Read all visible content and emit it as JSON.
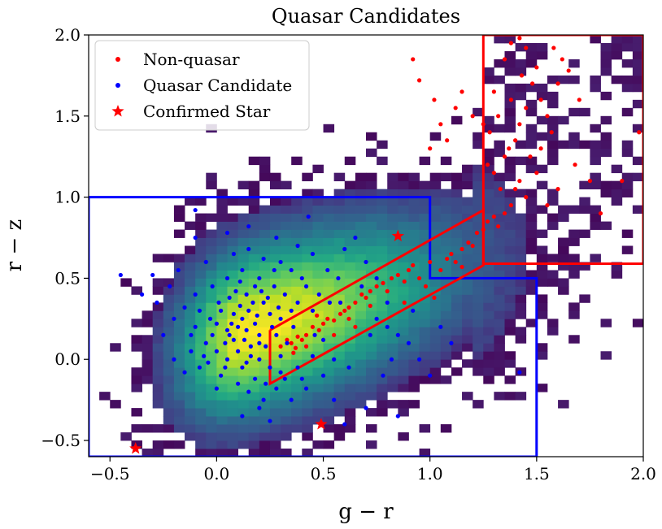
{
  "chart_data": {
    "type": "scatter",
    "title": "Quasar Candidates",
    "xlabel": "g − r",
    "ylabel": "r − z",
    "xlim": [
      -0.6,
      2.0
    ],
    "ylim": [
      -0.6,
      2.0
    ],
    "x_ticks": [
      -0.5,
      0.0,
      0.5,
      1.0,
      1.5,
      2.0
    ],
    "x_tick_labels": [
      "−0.5",
      "0.0",
      "0.5",
      "1.0",
      "1.5",
      "2.0"
    ],
    "y_ticks": [
      -0.5,
      0.0,
      0.5,
      1.0,
      1.5,
      2.0
    ],
    "y_tick_labels": [
      "−0.5",
      "0.0",
      "0.5",
      "1.0",
      "1.5",
      "2.0"
    ],
    "background": {
      "type": "heatmap",
      "description_colormap": "viridis",
      "core_center": [
        0.15,
        0.2
      ]
    },
    "legend": {
      "position": "top-left",
      "entries": [
        {
          "label": "Non-quasar",
          "marker": "dot",
          "color": "#ff0000"
        },
        {
          "label": "Quasar Candidate",
          "marker": "dot",
          "color": "#0000ff"
        },
        {
          "label": "Confirmed Star",
          "marker": "star",
          "color": "#ff0000"
        }
      ]
    },
    "regions": [
      {
        "name": "blue-region",
        "color": "#0000ff",
        "points": [
          [
            -0.6,
            1.0
          ],
          [
            1.0,
            1.0
          ],
          [
            1.0,
            0.5
          ],
          [
            1.5,
            0.5
          ],
          [
            1.5,
            -0.6
          ],
          [
            -0.6,
            -0.6
          ],
          [
            -0.6,
            1.0
          ]
        ]
      },
      {
        "name": "red-stripe-region",
        "color": "#ff0000",
        "points": [
          [
            0.25,
            0.18
          ],
          [
            1.25,
            0.92
          ],
          [
            1.25,
            0.58
          ],
          [
            0.25,
            -0.15
          ],
          [
            0.25,
            0.18
          ]
        ]
      },
      {
        "name": "red-box-region",
        "color": "#ff0000",
        "points": [
          [
            1.25,
            2.0
          ],
          [
            2.0,
            2.0
          ],
          [
            2.0,
            0.59
          ],
          [
            1.25,
            0.59
          ],
          [
            1.25,
            2.0
          ]
        ]
      }
    ],
    "series": [
      {
        "name": "Non-quasar",
        "color": "#ff0000",
        "marker": "dot",
        "points": [
          [
            0.3,
            0.08
          ],
          [
            0.33,
            0.12
          ],
          [
            0.35,
            0.1
          ],
          [
            0.37,
            0.07
          ],
          [
            0.38,
            0.14
          ],
          [
            0.4,
            0.12
          ],
          [
            0.42,
            0.15
          ],
          [
            0.36,
            0.04
          ],
          [
            0.45,
            0.2
          ],
          [
            0.48,
            0.18
          ],
          [
            0.5,
            0.22
          ],
          [
            0.52,
            0.25
          ],
          [
            0.47,
            0.27
          ],
          [
            0.55,
            0.24
          ],
          [
            0.58,
            0.28
          ],
          [
            0.6,
            0.3
          ],
          [
            0.62,
            0.32
          ],
          [
            0.65,
            0.35
          ],
          [
            0.68,
            0.4
          ],
          [
            0.7,
            0.38
          ],
          [
            0.72,
            0.42
          ],
          [
            0.75,
            0.45
          ],
          [
            0.78,
            0.47
          ],
          [
            0.8,
            0.42
          ],
          [
            0.82,
            0.5
          ],
          [
            0.85,
            0.52
          ],
          [
            0.88,
            0.48
          ],
          [
            0.9,
            0.55
          ],
          [
            0.92,
            0.58
          ],
          [
            0.95,
            0.5
          ],
          [
            1.0,
            0.6
          ],
          [
            1.05,
            0.55
          ],
          [
            1.08,
            0.62
          ],
          [
            1.1,
            0.65
          ],
          [
            1.12,
            0.6
          ],
          [
            1.15,
            0.68
          ],
          [
            1.18,
            0.72
          ],
          [
            1.2,
            0.7
          ],
          [
            1.22,
            0.78
          ],
          [
            1.25,
            0.8
          ],
          [
            1.27,
            0.85
          ],
          [
            1.3,
            0.88
          ],
          [
            1.32,
            0.82
          ],
          [
            1.35,
            0.9
          ],
          [
            1.38,
            0.95
          ],
          [
            1.4,
            1.05
          ],
          [
            1.42,
            1.1
          ],
          [
            1.45,
            1.0
          ],
          [
            1.3,
            1.15
          ],
          [
            1.35,
            1.25
          ],
          [
            1.28,
            1.4
          ],
          [
            1.32,
            1.5
          ],
          [
            1.38,
            1.6
          ],
          [
            1.4,
            1.35
          ],
          [
            1.42,
            1.45
          ],
          [
            1.45,
            1.55
          ],
          [
            1.48,
            1.7
          ],
          [
            1.5,
            1.8
          ],
          [
            1.35,
            1.85
          ],
          [
            1.38,
            1.95
          ],
          [
            1.42,
            1.98
          ],
          [
            1.45,
            1.92
          ],
          [
            1.3,
            1.65
          ],
          [
            1.47,
            1.25
          ],
          [
            1.5,
            1.15
          ],
          [
            1.52,
            1.3
          ],
          [
            1.55,
            1.5
          ],
          [
            1.6,
            1.7
          ],
          [
            1.62,
            1.85
          ],
          [
            1.58,
            1.92
          ],
          [
            1.65,
            1.78
          ],
          [
            1.7,
            1.6
          ],
          [
            1.68,
            1.2
          ],
          [
            1.75,
            1.1
          ],
          [
            1.6,
            1.05
          ],
          [
            1.55,
            0.95
          ],
          [
            1.8,
            0.9
          ],
          [
            1.9,
            1.1
          ],
          [
            1.98,
            1.4
          ],
          [
            1.25,
            1.45
          ],
          [
            1.2,
            1.5
          ],
          [
            1.15,
            1.65
          ],
          [
            1.12,
            1.55
          ],
          [
            1.08,
            1.35
          ],
          [
            1.05,
            1.45
          ],
          [
            1.0,
            1.3
          ],
          [
            0.92,
            1.85
          ],
          [
            0.95,
            1.72
          ],
          [
            1.02,
            1.6
          ],
          [
            1.27,
            1.2
          ],
          [
            1.33,
            1.05
          ],
          [
            1.37,
            1.3
          ],
          [
            1.43,
            1.75
          ],
          [
            1.52,
            1.6
          ],
          [
            1.57,
            1.4
          ],
          [
            0.55,
            0.15
          ],
          [
            0.62,
            0.25
          ],
          [
            0.72,
            0.33
          ],
          [
            0.65,
            0.2
          ],
          [
            0.98,
            0.45
          ],
          [
            0.88,
            0.35
          ],
          [
            1.15,
            0.57
          ],
          [
            1.02,
            0.38
          ],
          [
            0.42,
            0.08
          ]
        ]
      },
      {
        "name": "Quasar Candidate",
        "color": "#0000ff",
        "marker": "dot",
        "points": [
          [
            0.1,
            0.2
          ],
          [
            0.12,
            0.25
          ],
          [
            0.05,
            0.18
          ],
          [
            0.15,
            0.3
          ],
          [
            0.18,
            0.22
          ],
          [
            0.08,
            0.12
          ],
          [
            0.2,
            0.15
          ],
          [
            0.02,
            0.3
          ],
          [
            0.0,
            0.22
          ],
          [
            -0.02,
            0.15
          ],
          [
            0.25,
            0.28
          ],
          [
            0.22,
            0.35
          ],
          [
            0.14,
            0.4
          ],
          [
            0.06,
            0.38
          ],
          [
            0.1,
            0.05
          ],
          [
            0.16,
            0.08
          ],
          [
            0.2,
            0.0
          ],
          [
            0.12,
            -0.05
          ],
          [
            0.05,
            0.0
          ],
          [
            0.0,
            0.05
          ],
          [
            -0.05,
            0.1
          ],
          [
            -0.1,
            0.2
          ],
          [
            -0.08,
            0.3
          ],
          [
            0.28,
            0.15
          ],
          [
            0.3,
            0.25
          ],
          [
            0.35,
            0.3
          ],
          [
            0.32,
            0.4
          ],
          [
            0.27,
            0.45
          ],
          [
            0.2,
            0.5
          ],
          [
            0.12,
            0.55
          ],
          [
            0.05,
            0.5
          ],
          [
            -0.02,
            0.45
          ],
          [
            -0.1,
            0.4
          ],
          [
            -0.15,
            0.32
          ],
          [
            -0.2,
            0.25
          ],
          [
            -0.12,
            0.05
          ],
          [
            -0.08,
            -0.05
          ],
          [
            0.02,
            -0.1
          ],
          [
            0.1,
            -0.15
          ],
          [
            0.18,
            -0.12
          ],
          [
            0.25,
            -0.05
          ],
          [
            0.3,
            0.02
          ],
          [
            0.38,
            0.35
          ],
          [
            0.42,
            0.45
          ],
          [
            0.45,
            0.3
          ],
          [
            0.4,
            0.5
          ],
          [
            0.35,
            0.55
          ],
          [
            0.3,
            0.6
          ],
          [
            0.22,
            0.62
          ],
          [
            0.15,
            0.68
          ],
          [
            0.08,
            0.65
          ],
          [
            -0.05,
            0.6
          ],
          [
            -0.18,
            0.55
          ],
          [
            -0.22,
            0.45
          ],
          [
            -0.28,
            0.35
          ],
          [
            -0.25,
            0.15
          ],
          [
            -0.2,
            0.0
          ],
          [
            -0.15,
            -0.08
          ],
          [
            0.0,
            -0.18
          ],
          [
            0.15,
            -0.2
          ],
          [
            0.22,
            -0.25
          ],
          [
            0.28,
            -0.18
          ],
          [
            0.32,
            -0.12
          ],
          [
            0.38,
            -0.05
          ],
          [
            0.45,
            0.02
          ],
          [
            0.5,
            0.12
          ],
          [
            0.55,
            0.0
          ],
          [
            0.5,
            -0.1
          ],
          [
            0.42,
            -0.18
          ],
          [
            0.35,
            -0.25
          ],
          [
            0.2,
            -0.3
          ],
          [
            0.12,
            -0.35
          ],
          [
            0.25,
            -0.38
          ],
          [
            0.48,
            0.4
          ],
          [
            0.52,
            0.55
          ],
          [
            0.45,
            0.65
          ],
          [
            0.38,
            0.7
          ],
          [
            0.28,
            0.75
          ],
          [
            0.15,
            0.82
          ],
          [
            0.05,
            0.78
          ],
          [
            -0.1,
            0.75
          ],
          [
            -0.3,
            0.52
          ],
          [
            -0.35,
            0.4
          ],
          [
            -0.45,
            0.52
          ],
          [
            -0.1,
            0.92
          ],
          [
            0.43,
            0.88
          ],
          [
            0.6,
            0.68
          ],
          [
            0.65,
            0.75
          ],
          [
            0.7,
            0.6
          ],
          [
            0.58,
            0.35
          ],
          [
            0.75,
            0.25
          ],
          [
            0.8,
            0.2
          ],
          [
            0.85,
            0.15
          ],
          [
            0.9,
            0.1
          ],
          [
            0.95,
            0.0
          ],
          [
            1.0,
            -0.1
          ],
          [
            0.62,
            -0.05
          ],
          [
            0.55,
            -0.25
          ],
          [
            0.6,
            -0.4
          ],
          [
            0.7,
            -0.3
          ],
          [
            0.85,
            -0.35
          ],
          [
            1.42,
            -0.08
          ],
          [
            0.2,
            0.1
          ],
          [
            0.14,
            0.18
          ],
          [
            0.08,
            0.28
          ],
          [
            0.04,
            0.1
          ],
          [
            0.17,
            0.35
          ],
          [
            0.23,
            0.08
          ],
          [
            -0.03,
            0.25
          ],
          [
            0.11,
            0.33
          ],
          [
            0.19,
            0.27
          ],
          [
            0.26,
            0.2
          ],
          [
            0.07,
            0.22
          ],
          [
            0.13,
            0.12
          ],
          [
            0.01,
            0.35
          ],
          [
            0.09,
            0.42
          ],
          [
            0.24,
            0.38
          ],
          [
            0.16,
            0.02
          ],
          [
            -0.06,
            0.02
          ],
          [
            0.29,
            0.32
          ],
          [
            0.04,
            -0.05
          ],
          [
            0.21,
            0.42
          ],
          [
            0.33,
            0.1
          ],
          [
            0.36,
            0.2
          ],
          [
            -0.12,
            0.15
          ],
          [
            0.06,
            0.15
          ],
          [
            0.18,
            0.45
          ],
          [
            0.11,
            0.48
          ],
          [
            0.27,
            0.55
          ],
          [
            0.3,
            -0.08
          ],
          [
            0.14,
            -0.02
          ],
          [
            -0.04,
            -0.02
          ],
          [
            0.23,
            -0.15
          ],
          [
            0.4,
            -0.12
          ],
          [
            0.46,
            0.15
          ],
          [
            0.53,
            0.35
          ],
          [
            0.57,
            0.5
          ],
          [
            0.68,
            0.45
          ],
          [
            0.75,
            0.5
          ],
          [
            0.8,
            0.35
          ],
          [
            0.72,
            0.15
          ],
          [
            0.82,
            0.0
          ],
          [
            0.78,
            -0.1
          ],
          [
            0.92,
            0.3
          ],
          [
            1.05,
            0.2
          ],
          [
            1.1,
            0.1
          ]
        ]
      },
      {
        "name": "Confirmed Star",
        "color": "#ff0000",
        "marker": "star",
        "points": [
          [
            -0.38,
            -0.55
          ],
          [
            0.49,
            -0.4
          ],
          [
            0.85,
            0.76
          ]
        ]
      }
    ]
  }
}
